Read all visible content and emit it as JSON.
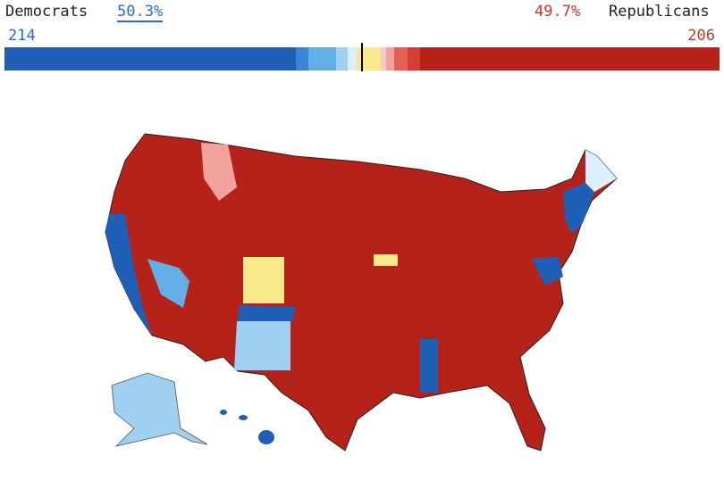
{
  "header": {
    "left_label": "Democrats",
    "left_pct": "50.3%",
    "right_pct": "49.7%",
    "right_label": "Republicans",
    "left_seats": 214,
    "right_seats": 206
  },
  "bar": {
    "segments": [
      {
        "color": "#1f5fb5",
        "seats": 177
      },
      {
        "color": "#3a86d4",
        "seats": 8
      },
      {
        "color": "#62aee6",
        "seats": 17
      },
      {
        "color": "#9fd0f2",
        "seats": 7
      },
      {
        "color": "#dcefff",
        "seats": 5
      },
      {
        "color": "#f8e98a",
        "seats": 15
      },
      {
        "color": "#fbc7c4",
        "seats": 3
      },
      {
        "color": "#f3a39c",
        "seats": 5
      },
      {
        "color": "#e46055",
        "seats": 8
      },
      {
        "color": "#d63d33",
        "seats": 8
      },
      {
        "color": "#b5221a",
        "seats": 182
      }
    ]
  }
}
